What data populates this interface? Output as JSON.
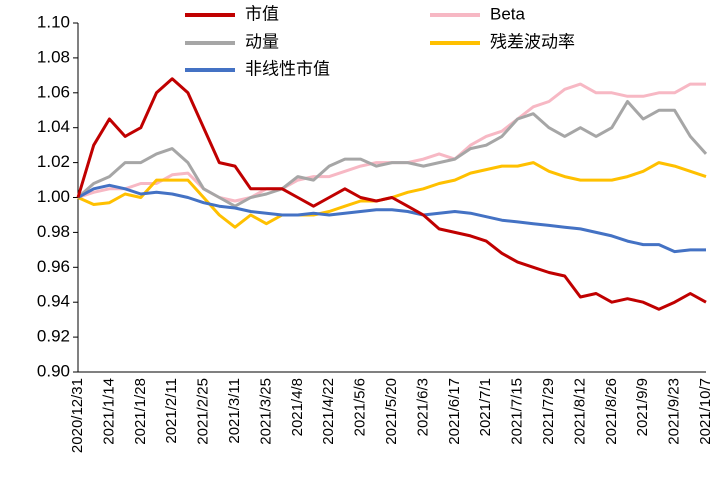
{
  "chart_data": {
    "type": "line",
    "categories": [
      "2020/12/31",
      null,
      "2021/1/14",
      null,
      "2021/1/28",
      null,
      "2021/2/11",
      null,
      "2021/2/25",
      null,
      "2021/3/11",
      null,
      "2021/3/25",
      null,
      "2021/4/8",
      null,
      "2021/4/22",
      null,
      "2021/5/6",
      null,
      "2021/5/20",
      null,
      "2021/6/3",
      null,
      "2021/6/17",
      null,
      "2021/7/1",
      null,
      "2021/7/15",
      null,
      "2021/7/29",
      null,
      "2021/8/12",
      null,
      "2021/8/26",
      null,
      "2021/9/9",
      null,
      "2021/9/23",
      null,
      "2021/10/7"
    ],
    "series": [
      {
        "name": "市值",
        "color": "#c00000",
        "values": [
          1.0,
          1.03,
          1.045,
          1.035,
          1.04,
          1.06,
          1.068,
          1.06,
          1.04,
          1.02,
          1.018,
          1.005,
          1.005,
          1.005,
          1.0,
          0.995,
          1.0,
          1.005,
          1.0,
          0.998,
          1.0,
          0.995,
          0.99,
          0.982,
          0.98,
          0.978,
          0.975,
          0.968,
          0.963,
          0.96,
          0.957,
          0.955,
          0.943,
          0.945,
          0.94,
          0.942,
          0.94,
          0.936,
          0.94,
          0.945,
          0.94
        ]
      },
      {
        "name": "Beta",
        "color": "#f7b8c4",
        "values": [
          1.0,
          1.003,
          1.005,
          1.005,
          1.008,
          1.008,
          1.013,
          1.014,
          1.005,
          1.0,
          0.998,
          1.0,
          1.005,
          1.005,
          1.01,
          1.012,
          1.012,
          1.015,
          1.018,
          1.02,
          1.02,
          1.02,
          1.022,
          1.025,
          1.022,
          1.03,
          1.035,
          1.038,
          1.045,
          1.052,
          1.055,
          1.062,
          1.065,
          1.06,
          1.06,
          1.058,
          1.058,
          1.06,
          1.06,
          1.065,
          1.065
        ]
      },
      {
        "name": "动量",
        "color": "#a6a6a6",
        "values": [
          1.0,
          1.008,
          1.012,
          1.02,
          1.02,
          1.025,
          1.028,
          1.02,
          1.005,
          1.0,
          0.995,
          1.0,
          1.002,
          1.005,
          1.012,
          1.01,
          1.018,
          1.022,
          1.022,
          1.018,
          1.02,
          1.02,
          1.018,
          1.02,
          1.022,
          1.028,
          1.03,
          1.035,
          1.045,
          1.048,
          1.04,
          1.035,
          1.04,
          1.035,
          1.04,
          1.055,
          1.045,
          1.05,
          1.05,
          1.035,
          1.025
        ]
      },
      {
        "name": "残差波动率",
        "color": "#ffc000",
        "values": [
          1.0,
          0.996,
          0.997,
          1.002,
          1.0,
          1.01,
          1.01,
          1.01,
          1.0,
          0.99,
          0.983,
          0.99,
          0.985,
          0.99,
          0.99,
          0.99,
          0.992,
          0.995,
          0.998,
          0.998,
          1.0,
          1.003,
          1.005,
          1.008,
          1.01,
          1.014,
          1.016,
          1.018,
          1.018,
          1.02,
          1.015,
          1.012,
          1.01,
          1.01,
          1.01,
          1.012,
          1.015,
          1.02,
          1.018,
          1.015,
          1.012
        ]
      },
      {
        "name": "非线性市值",
        "color": "#4472c4",
        "values": [
          1.0,
          1.005,
          1.007,
          1.005,
          1.002,
          1.003,
          1.002,
          1.0,
          0.997,
          0.995,
          0.994,
          0.992,
          0.991,
          0.99,
          0.99,
          0.991,
          0.99,
          0.991,
          0.992,
          0.993,
          0.993,
          0.992,
          0.99,
          0.991,
          0.992,
          0.991,
          0.989,
          0.987,
          0.986,
          0.985,
          0.984,
          0.983,
          0.982,
          0.98,
          0.978,
          0.975,
          0.973,
          0.973,
          0.969,
          0.97,
          0.97
        ]
      }
    ],
    "ylim": [
      0.9,
      1.1
    ],
    "yticks": [
      {
        "value": 0.9,
        "label": "0.90"
      },
      {
        "value": 0.92,
        "label": "0.92"
      },
      {
        "value": 0.94,
        "label": "0.94"
      },
      {
        "value": 0.96,
        "label": "0.96"
      },
      {
        "value": 0.98,
        "label": "0.98"
      },
      {
        "value": 1.0,
        "label": "1.00"
      },
      {
        "value": 1.02,
        "label": "1.02"
      },
      {
        "value": 1.04,
        "label": "1.04"
      },
      {
        "value": 1.06,
        "label": "1.06"
      },
      {
        "value": 1.08,
        "label": "1.08"
      },
      {
        "value": 1.1,
        "label": "1.10"
      }
    ],
    "grid": false
  }
}
